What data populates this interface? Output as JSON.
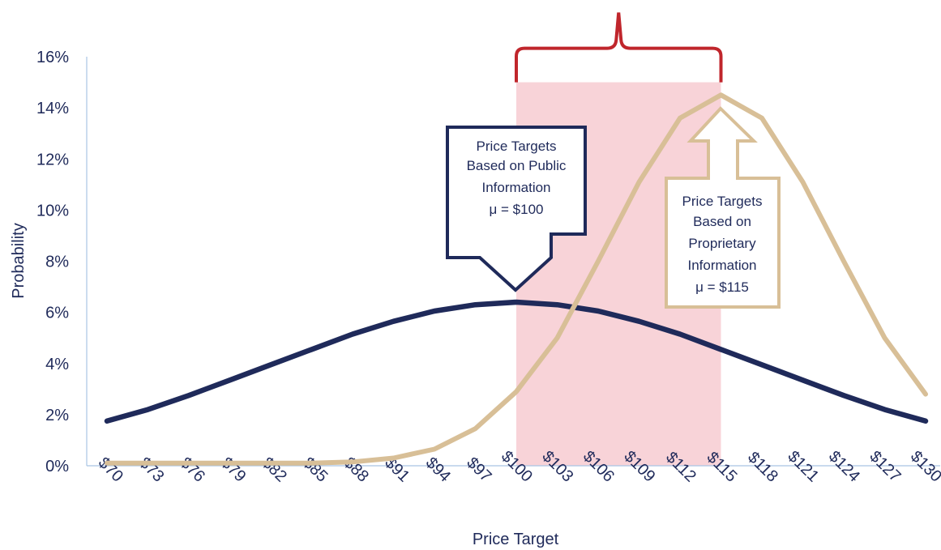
{
  "chart_data": {
    "type": "line",
    "xlabel": "Price Target",
    "ylabel": "Probability",
    "categories": [
      "$70",
      "$73",
      "$76",
      "$79",
      "$82",
      "$85",
      "$88",
      "$91",
      "$94",
      "$97",
      "$100",
      "$103",
      "$106",
      "$109",
      "$112",
      "$115",
      "$118",
      "$121",
      "$124",
      "$127",
      "$130"
    ],
    "x": [
      70,
      73,
      76,
      79,
      82,
      85,
      88,
      91,
      94,
      97,
      100,
      103,
      106,
      109,
      112,
      115,
      118,
      121,
      124,
      127,
      130
    ],
    "ylim": [
      0,
      16
    ],
    "yticks": [
      0,
      2,
      4,
      6,
      8,
      10,
      12,
      14,
      16
    ],
    "ytick_labels": [
      "0%",
      "2%",
      "4%",
      "6%",
      "8%",
      "10%",
      "12%",
      "14%",
      "16%"
    ],
    "series": [
      {
        "values": [
          1.75,
          2.2,
          2.75,
          3.35,
          3.95,
          4.55,
          5.15,
          5.65,
          6.05,
          6.3,
          6.4,
          6.3,
          6.05,
          5.65,
          5.15,
          4.55,
          3.95,
          3.35,
          2.75,
          2.2,
          1.75
        ]
      },
      {
        "values": [
          0.1,
          0.1,
          0.1,
          0.1,
          0.1,
          0.1,
          0.15,
          0.3,
          0.65,
          1.45,
          2.9,
          5.0,
          8.0,
          11.1,
          13.6,
          14.5,
          13.6,
          11.1,
          8.0,
          5.0,
          2.8
        ]
      }
    ],
    "highlight_range": {
      "x_start": 100,
      "x_end": 115,
      "y_top": 15
    },
    "grid": false,
    "colors": {
      "public": "#1f2a5a",
      "proprietary": "#d8bf97",
      "highlight": "#f8d3d8",
      "bracket": "#c0262c",
      "axis": "#a9c4e4"
    }
  },
  "callouts": {
    "public": {
      "lines": [
        "Price Targets",
        "Based on Public",
        "Information",
        "μ = $100"
      ]
    },
    "proprietary": {
      "lines": [
        "Price Targets",
        "Based on",
        "Proprietary",
        "Information",
        "μ = $115"
      ]
    }
  }
}
